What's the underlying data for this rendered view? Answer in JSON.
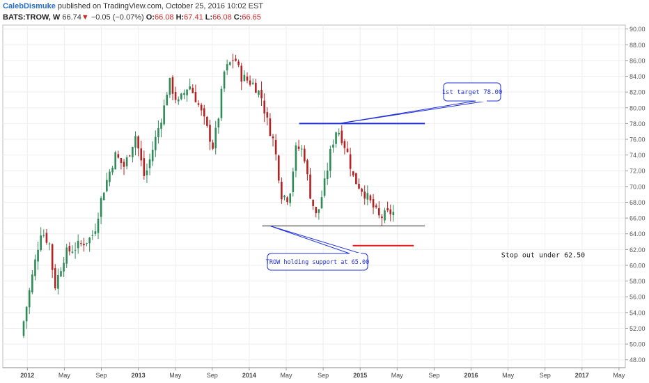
{
  "header": {
    "author": "CalebDismuke",
    "published_text": "published on TradingView.com, October 25, 2016 10:02 EST",
    "symbol": "BATS:TROW, W",
    "last": "66.74",
    "change_arrow": "▼",
    "change": "−0.05 (−0.07%)",
    "o_label": "O:",
    "o_value": "66.08",
    "h_label": "H:",
    "h_value": "67.41",
    "l_label": "L:",
    "l_value": "66.08",
    "c_label": "C:",
    "c_value": "66.65"
  },
  "chart_data": {
    "type": "candlestick",
    "y_range": [
      47.0,
      90.5
    ],
    "y_ticks": [
      "48.00",
      "50.00",
      "52.00",
      "54.00",
      "56.00",
      "58.00",
      "60.00",
      "62.00",
      "64.00",
      "66.00",
      "68.00",
      "70.00",
      "72.00",
      "74.00",
      "76.00",
      "78.00",
      "80.00",
      "82.00",
      "84.00",
      "86.00",
      "88.00",
      "90.00"
    ],
    "x_labels": [
      {
        "label": "2012",
        "bold": true
      },
      {
        "label": "May",
        "bold": false
      },
      {
        "label": "Sep",
        "bold": false
      },
      {
        "label": "2013",
        "bold": true
      },
      {
        "label": "May",
        "bold": false
      },
      {
        "label": "Sep",
        "bold": false
      },
      {
        "label": "2014",
        "bold": true
      },
      {
        "label": "May",
        "bold": false
      },
      {
        "label": "Sep",
        "bold": false
      },
      {
        "label": "2015",
        "bold": true
      },
      {
        "label": "May",
        "bold": false
      },
      {
        "label": "Sep",
        "bold": false
      },
      {
        "label": "2016",
        "bold": true
      },
      {
        "label": "May",
        "bold": false
      },
      {
        "label": "Sep",
        "bold": false
      },
      {
        "label": "2017",
        "bold": true
      },
      {
        "label": "May",
        "bold": false
      }
    ],
    "price_path": [
      {
        "t": 0,
        "price": 51.0
      },
      {
        "t": 0.55,
        "price": 64.5
      },
      {
        "t": 0.8,
        "price": 62.5
      },
      {
        "t": 0.9,
        "price": 57.0
      },
      {
        "t": 1.2,
        "price": 61.5
      },
      {
        "t": 1.9,
        "price": 63.5
      },
      {
        "t": 2.0,
        "price": 64.5
      },
      {
        "t": 2.2,
        "price": 69.0
      },
      {
        "t": 2.55,
        "price": 74.0
      },
      {
        "t": 2.8,
        "price": 72.5
      },
      {
        "t": 3.1,
        "price": 76.5
      },
      {
        "t": 3.35,
        "price": 71.0
      },
      {
        "t": 3.55,
        "price": 74.5
      },
      {
        "t": 3.9,
        "price": 80.5
      },
      {
        "t": 4.0,
        "price": 83.5
      },
      {
        "t": 4.25,
        "price": 80.5
      },
      {
        "t": 4.55,
        "price": 83.0
      },
      {
        "t": 4.75,
        "price": 81.0
      },
      {
        "t": 4.95,
        "price": 78.5
      },
      {
        "t": 5.2,
        "price": 75.0
      },
      {
        "t": 5.35,
        "price": 79.0
      },
      {
        "t": 5.5,
        "price": 84.5
      },
      {
        "t": 5.78,
        "price": 86.5
      },
      {
        "t": 5.95,
        "price": 84.0
      },
      {
        "t": 6.3,
        "price": 83.0
      },
      {
        "t": 6.5,
        "price": 81.5
      },
      {
        "t": 6.65,
        "price": 78.5
      },
      {
        "t": 6.85,
        "price": 75.5
      },
      {
        "t": 7.05,
        "price": 69.0
      },
      {
        "t": 7.25,
        "price": 68.5
      },
      {
        "t": 7.45,
        "price": 75.0
      },
      {
        "t": 7.65,
        "price": 74.5
      },
      {
        "t": 7.8,
        "price": 69.5
      },
      {
        "t": 8.0,
        "price": 66.0
      },
      {
        "t": 8.2,
        "price": 70.0
      },
      {
        "t": 8.4,
        "price": 75.0
      },
      {
        "t": 8.55,
        "price": 77.5
      },
      {
        "t": 8.7,
        "price": 76.0
      },
      {
        "t": 8.85,
        "price": 74.0
      },
      {
        "t": 9.0,
        "price": 71.0
      },
      {
        "t": 9.25,
        "price": 69.5
      },
      {
        "t": 9.45,
        "price": 68.0
      },
      {
        "t": 9.7,
        "price": 66.0
      },
      {
        "t": 10.0,
        "price": 66.7
      }
    ],
    "lines": [
      {
        "name": "target-line",
        "price": 78.0,
        "from_t": 7.45,
        "to_t": 10.85,
        "color": "#2030d8"
      },
      {
        "name": "support-line",
        "price": 65.0,
        "from_t": 6.45,
        "to_t": 10.85,
        "color": "#333333"
      },
      {
        "name": "stop-line",
        "price": 62.5,
        "from_t": 8.9,
        "to_t": 10.55,
        "color": "#e81c1c"
      }
    ],
    "annotations": [
      {
        "name": "target-callout",
        "text": "1st target 78.00"
      },
      {
        "name": "support-callout",
        "text": "TROW holding support at 65.00"
      },
      {
        "name": "stop-label",
        "text": "Stop out under 62.50"
      }
    ],
    "colors": {
      "up": "#2e8b57",
      "down": "#b22222",
      "grid": "#eeeeee",
      "axis": "#555555"
    }
  }
}
